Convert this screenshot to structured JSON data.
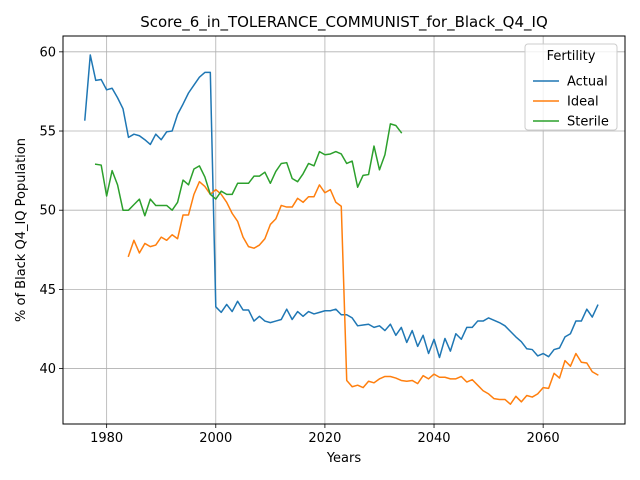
{
  "chart_data": {
    "type": "line",
    "title": "Score_6_in_TOLERANCE_COMMUNIST_for_Black_Q4_IQ",
    "xlabel": "Years",
    "ylabel": "% of Black Q4_IQ Population",
    "xlim": [
      1972,
      2075
    ],
    "ylim": [
      36.5,
      61.0
    ],
    "xticks": [
      1980,
      2000,
      2020,
      2040,
      2060
    ],
    "yticks": [
      40,
      45,
      50,
      55,
      60
    ],
    "grid": true,
    "legend": {
      "title": "Fertility",
      "placement": "top-right"
    },
    "colors": {
      "Actual": "#1f77b4",
      "Ideal": "#ff7f0e",
      "Sterile": "#2ca02c"
    },
    "series": [
      {
        "name": "Actual",
        "x": [
          1976,
          1977,
          1978,
          1979,
          1980,
          1981,
          1982,
          1983,
          1984,
          1985,
          1986,
          1987,
          1988,
          1989,
          1990,
          1991,
          1992,
          1993,
          1994,
          1995,
          1996,
          1997,
          1998,
          1999,
          2000,
          2001,
          2002,
          2003,
          2004,
          2005,
          2006,
          2007,
          2008,
          2009,
          2010,
          2011,
          2012,
          2013,
          2014,
          2015,
          2016,
          2017,
          2018,
          2019,
          2020,
          2021,
          2022,
          2023,
          2024,
          2025,
          2026,
          2027,
          2028,
          2029,
          2030,
          2031,
          2032,
          2033,
          2034,
          2035,
          2036,
          2037,
          2038,
          2039,
          2040,
          2041,
          2042,
          2043,
          2044,
          2045,
          2046,
          2047,
          2048,
          2049,
          2050,
          2051,
          2052,
          2053,
          2054,
          2055,
          2056,
          2057,
          2058,
          2059,
          2060,
          2061,
          2062,
          2063,
          2064,
          2065,
          2066,
          2067,
          2068,
          2069,
          2070
        ],
        "y": [
          55.7,
          59.8,
          58.2,
          58.25,
          57.6,
          57.7,
          57.1,
          56.4,
          54.6,
          54.8,
          54.7,
          54.45,
          54.15,
          54.8,
          54.45,
          54.95,
          55.0,
          56.05,
          56.7,
          57.4,
          57.9,
          58.4,
          58.7,
          58.7,
          43.9,
          43.55,
          44.05,
          43.6,
          44.25,
          43.7,
          43.7,
          43.0,
          43.3,
          43.0,
          42.9,
          43.0,
          43.1,
          43.75,
          43.1,
          43.6,
          43.3,
          43.6,
          43.45,
          43.55,
          43.65,
          43.65,
          43.75,
          43.4,
          43.4,
          43.2,
          42.7,
          42.75,
          42.8,
          42.6,
          42.7,
          42.4,
          42.8,
          42.1,
          42.6,
          41.65,
          42.4,
          41.4,
          42.1,
          40.95,
          41.85,
          40.7,
          41.9,
          41.1,
          42.2,
          41.85,
          42.6,
          42.6,
          43.0,
          43.0,
          43.2,
          43.05,
          42.9,
          42.7,
          42.35,
          42.0,
          41.7,
          41.25,
          41.2,
          40.8,
          40.95,
          40.75,
          41.2,
          41.3,
          42.0,
          42.2,
          43.0,
          43.0,
          43.75,
          43.25,
          44.0
        ]
      },
      {
        "name": "Ideal",
        "x": [
          1984,
          1985,
          1986,
          1987,
          1988,
          1989,
          1990,
          1991,
          1992,
          1993,
          1994,
          1995,
          1996,
          1997,
          1998,
          1999,
          2000,
          2001,
          2002,
          2003,
          2004,
          2005,
          2006,
          2007,
          2008,
          2009,
          2010,
          2011,
          2012,
          2013,
          2014,
          2015,
          2016,
          2017,
          2018,
          2019,
          2020,
          2021,
          2022,
          2023,
          2024,
          2025,
          2026,
          2027,
          2028,
          2029,
          2030,
          2031,
          2032,
          2033,
          2034,
          2035,
          2036,
          2037,
          2038,
          2039,
          2040,
          2041,
          2042,
          2043,
          2044,
          2045,
          2046,
          2047,
          2048,
          2049,
          2050,
          2051,
          2052,
          2053,
          2054,
          2055,
          2056,
          2057,
          2058,
          2059,
          2060,
          2061,
          2062,
          2063,
          2064,
          2065,
          2066,
          2067,
          2068,
          2069,
          2070
        ],
        "y": [
          47.1,
          48.1,
          47.3,
          47.9,
          47.7,
          47.8,
          48.3,
          48.1,
          48.45,
          48.2,
          49.7,
          49.7,
          51.0,
          51.8,
          51.5,
          51.0,
          51.3,
          51.0,
          50.5,
          49.8,
          49.3,
          48.3,
          47.7,
          47.6,
          47.8,
          48.2,
          49.1,
          49.45,
          50.3,
          50.2,
          50.2,
          50.75,
          50.5,
          50.85,
          50.85,
          51.6,
          51.1,
          51.3,
          50.5,
          50.25,
          39.25,
          38.85,
          38.95,
          38.8,
          39.2,
          39.1,
          39.35,
          39.5,
          39.5,
          39.4,
          39.25,
          39.2,
          39.25,
          39.05,
          39.55,
          39.35,
          39.65,
          39.45,
          39.45,
          39.35,
          39.35,
          39.5,
          39.15,
          39.3,
          38.95,
          38.6,
          38.4,
          38.1,
          38.05,
          38.05,
          37.75,
          38.25,
          37.9,
          38.3,
          38.2,
          38.4,
          38.8,
          38.75,
          39.7,
          39.4,
          40.5,
          40.15,
          40.95,
          40.4,
          40.35,
          39.8,
          39.6
        ]
      },
      {
        "name": "Sterile",
        "x": [
          1978,
          1979,
          1980,
          1981,
          1982,
          1983,
          1984,
          1985,
          1986,
          1987,
          1988,
          1989,
          1990,
          1991,
          1992,
          1993,
          1994,
          1995,
          1996,
          1997,
          1998,
          1999,
          2000,
          2001,
          2002,
          2003,
          2004,
          2005,
          2006,
          2007,
          2008,
          2009,
          2010,
          2011,
          2012,
          2013,
          2014,
          2015,
          2016,
          2017,
          2018,
          2019,
          2020,
          2021,
          2022,
          2023,
          2024,
          2025,
          2026,
          2027,
          2028,
          2029,
          2030,
          2031,
          2032,
          2033,
          2034
        ],
        "y": [
          52.9,
          52.85,
          50.9,
          52.5,
          51.6,
          50.0,
          50.0,
          50.35,
          50.7,
          49.65,
          50.7,
          50.3,
          50.3,
          50.3,
          50.0,
          50.5,
          51.9,
          51.6,
          52.6,
          52.8,
          52.1,
          51.0,
          50.7,
          51.2,
          51.0,
          51.0,
          51.7,
          51.7,
          51.7,
          52.15,
          52.15,
          52.4,
          51.7,
          52.45,
          52.95,
          53.0,
          52.0,
          51.8,
          52.3,
          52.95,
          52.8,
          53.7,
          53.5,
          53.55,
          53.7,
          53.55,
          52.95,
          53.1,
          51.45,
          52.2,
          52.25,
          54.05,
          52.55,
          53.5,
          55.45,
          55.35,
          54.9
        ]
      }
    ]
  }
}
